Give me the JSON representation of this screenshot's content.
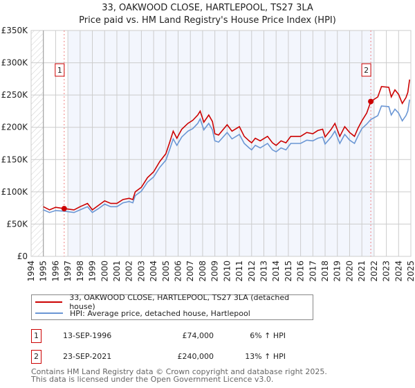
{
  "title_line1": "33, OAKWOOD CLOSE, HARTLEPOOL, TS27 3LA",
  "title_line2": "Price paid vs. HM Land Registry's House Price Index (HPI)",
  "chart_data": {
    "type": "line",
    "title": "33, OAKWOOD CLOSE, HARTLEPOOL, TS27 3LA — Price paid vs. HM Land Registry's House Price Index (HPI)",
    "xlim": [
      1994,
      2025
    ],
    "ylim": [
      0,
      350000
    ],
    "x_ticks": [
      "1994",
      "1995",
      "1996",
      "1997",
      "1998",
      "1999",
      "2000",
      "2001",
      "2002",
      "2003",
      "2004",
      "2005",
      "2006",
      "2007",
      "2008",
      "2009",
      "2010",
      "2011",
      "2012",
      "2013",
      "2014",
      "2015",
      "2016",
      "2017",
      "2018",
      "2019",
      "2020",
      "2021",
      "2022",
      "2023",
      "2024",
      "2025"
    ],
    "y_ticks": [
      {
        "v": 0,
        "label": "£0"
      },
      {
        "v": 50000,
        "label": "£50K"
      },
      {
        "v": 100000,
        "label": "£100K"
      },
      {
        "v": 150000,
        "label": "£150K"
      },
      {
        "v": 200000,
        "label": "£200K"
      },
      {
        "v": 250000,
        "label": "£250K"
      },
      {
        "v": 300000,
        "label": "£300K"
      },
      {
        "v": 350000,
        "label": "£350K"
      }
    ],
    "grid": true,
    "shaded_range": [
      1997,
      2022
    ],
    "hatched_range": [
      1994,
      1995
    ],
    "colors": {
      "property": "#cc0000",
      "hpi": "#6a96d4",
      "shade": "#f3f6fd",
      "grid": "#cccccc",
      "marker_line": "#f08080"
    },
    "series": [
      {
        "name": "33, OAKWOOD CLOSE, HARTLEPOOL, TS27 3LA (detached house)",
        "key": "property",
        "x": [
          1995,
          1995.5,
          1996,
          1996.7,
          1997.5,
          1998,
          1998.6,
          1999,
          1999.5,
          2000,
          2000.5,
          2001,
          2001.5,
          2002,
          2002.3,
          2002.5,
          2003,
          2003.5,
          2004,
          2004.5,
          2005,
          2005.3,
          2005.6,
          2005.9,
          2006.3,
          2006.8,
          2007.2,
          2007.6,
          2007.8,
          2008.1,
          2008.5,
          2008.8,
          2009,
          2009.3,
          2010,
          2010.4,
          2011,
          2011.4,
          2011.8,
          2012,
          2012.3,
          2012.7,
          2013.3,
          2013.7,
          2014,
          2014.4,
          2014.8,
          2015.2,
          2016,
          2016.5,
          2017,
          2017.4,
          2017.8,
          2018,
          2018.5,
          2018.8,
          2019.2,
          2019.6,
          2020,
          2020.4,
          2020.7,
          2021,
          2021.4,
          2021.73,
          2022.3,
          2022.6,
          2023.2,
          2023.4,
          2023.7,
          2024,
          2024.3,
          2024.6,
          2024.75,
          2024.9
        ],
        "values": [
          77000,
          72000,
          76000,
          74000,
          72000,
          77000,
          82000,
          72000,
          79000,
          86000,
          82000,
          82000,
          88000,
          90000,
          88000,
          100000,
          107000,
          122000,
          131000,
          147000,
          159000,
          176000,
          194000,
          183000,
          197000,
          206000,
          211000,
          219000,
          225000,
          208000,
          219000,
          209000,
          190000,
          188000,
          204000,
          194000,
          201000,
          186000,
          179000,
          176000,
          183000,
          179000,
          186000,
          176000,
          172000,
          179000,
          176000,
          186000,
          186000,
          192000,
          190000,
          195000,
          197000,
          185000,
          197000,
          206000,
          186000,
          201000,
          192000,
          186000,
          199000,
          210000,
          222000,
          240000,
          247000,
          263000,
          262000,
          247000,
          258000,
          251000,
          237000,
          246000,
          254000,
          274000
        ]
      },
      {
        "name": "HPI: Average price, detached house, Hartlepool",
        "key": "hpi",
        "x": [
          1995,
          1995.5,
          1996,
          1996.7,
          1997.5,
          1998,
          1998.6,
          1999,
          1999.5,
          2000,
          2000.5,
          2001,
          2001.5,
          2002,
          2002.3,
          2002.5,
          2003,
          2003.5,
          2004,
          2004.5,
          2005,
          2005.3,
          2005.6,
          2005.9,
          2006.3,
          2006.8,
          2007.2,
          2007.6,
          2007.8,
          2008.1,
          2008.5,
          2008.8,
          2009,
          2009.3,
          2010,
          2010.4,
          2011,
          2011.4,
          2011.8,
          2012,
          2012.3,
          2012.7,
          2013.3,
          2013.7,
          2014,
          2014.4,
          2014.8,
          2015.2,
          2016,
          2016.5,
          2017,
          2017.4,
          2017.8,
          2018,
          2018.5,
          2018.8,
          2019.2,
          2019.6,
          2020,
          2020.4,
          2020.7,
          2021,
          2021.4,
          2021.73,
          2022.3,
          2022.6,
          2023.2,
          2023.4,
          2023.7,
          2024,
          2024.3,
          2024.6,
          2024.75,
          2024.9
        ],
        "values": [
          72000,
          68000,
          71000,
          70000,
          68000,
          72000,
          77000,
          68000,
          74000,
          81000,
          77000,
          77000,
          83000,
          85000,
          83000,
          94000,
          101000,
          115000,
          123000,
          138000,
          149000,
          165000,
          182000,
          172000,
          185000,
          194000,
          198000,
          206000,
          213000,
          196000,
          206000,
          196000,
          179000,
          177000,
          192000,
          182000,
          189000,
          175000,
          168000,
          165000,
          172000,
          168000,
          175000,
          165000,
          162000,
          168000,
          165000,
          175000,
          175000,
          180000,
          179000,
          183000,
          185000,
          174000,
          185000,
          194000,
          175000,
          189000,
          180000,
          175000,
          187000,
          198000,
          205000,
          212000,
          218000,
          233000,
          232000,
          219000,
          228000,
          222000,
          210000,
          218000,
          225000,
          243000
        ]
      }
    ],
    "sales": [
      {
        "id": "1",
        "x": 1996.7,
        "value": 74000
      },
      {
        "id": "2",
        "x": 2021.73,
        "value": 240000
      }
    ]
  },
  "legend": {
    "property": "33, OAKWOOD CLOSE, HARTLEPOOL, TS27 3LA (detached house)",
    "hpi": "HPI: Average price, detached house, Hartlepool"
  },
  "transactions": [
    {
      "id": "1",
      "date": "13-SEP-1996",
      "price": "£74,000",
      "hpi": "6% ↑ HPI"
    },
    {
      "id": "2",
      "date": "23-SEP-2021",
      "price": "£240,000",
      "hpi": "13% ↑ HPI"
    }
  ],
  "footer": {
    "line1": "Contains HM Land Registry data © Crown copyright and database right 2025.",
    "line2": "This data is licensed under the Open Government Licence v3.0."
  }
}
